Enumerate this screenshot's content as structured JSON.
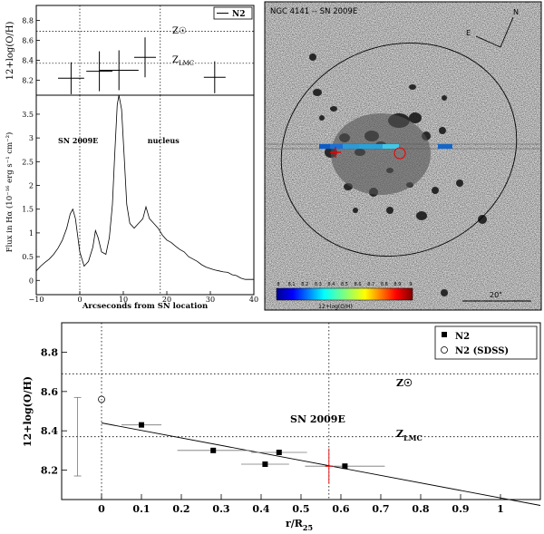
{
  "panels": {
    "top_left": {
      "ylabel": "12+log(O/H)",
      "legend": "N2",
      "ref_labels": [
        "Z☉",
        "Z_LMC"
      ],
      "ref_values": [
        8.69,
        8.37
      ],
      "ylim": [
        8.05,
        8.95
      ],
      "xlim": [
        -10,
        40
      ],
      "yticks": [
        "8.8",
        "8.6",
        "8.4",
        "8.2"
      ],
      "points": [
        {
          "x": -2,
          "y": 8.22,
          "xerr": 3,
          "yerr": 0.16
        },
        {
          "x": 4.5,
          "y": 8.29,
          "xerr": 3,
          "yerr": 0.2
        },
        {
          "x": 9,
          "y": 8.3,
          "xerr": 4.5,
          "yerr": 0.2
        },
        {
          "x": 15,
          "y": 8.43,
          "xerr": 2.5,
          "yerr": 0.2
        },
        {
          "x": 31,
          "y": 8.23,
          "xerr": 2.5,
          "yerr": 0.16
        }
      ]
    },
    "spectrum": {
      "ylabel": "Flux in Hα (10⁻¹⁶ erg s⁻¹ cm⁻²)",
      "xlabel": "Arcseconds from SN location",
      "ylim": [
        -0.3,
        3.9
      ],
      "xlim": [
        -10,
        40
      ],
      "yticks": [
        "3.5",
        "3",
        "2.5",
        "2",
        "1.5",
        "1",
        "0.5",
        "0"
      ],
      "xticks": [
        "−10",
        "0",
        "10",
        "20",
        "30",
        "40"
      ],
      "markers": [
        {
          "label": "SN 2009E",
          "x": 0
        },
        {
          "label": "nucleus",
          "x": 18.5
        }
      ],
      "profile": [
        [
          -10,
          0.2
        ],
        [
          -9,
          0.3
        ],
        [
          -8,
          0.38
        ],
        [
          -7,
          0.45
        ],
        [
          -6,
          0.55
        ],
        [
          -5,
          0.68
        ],
        [
          -4,
          0.85
        ],
        [
          -3,
          1.1
        ],
        [
          -2.2,
          1.4
        ],
        [
          -1.6,
          1.5
        ],
        [
          -1,
          1.3
        ],
        [
          0,
          0.6
        ],
        [
          1,
          0.3
        ],
        [
          2,
          0.4
        ],
        [
          3,
          0.7
        ],
        [
          3.6,
          1.05
        ],
        [
          4.2,
          0.9
        ],
        [
          5,
          0.6
        ],
        [
          6,
          0.55
        ],
        [
          6.8,
          0.9
        ],
        [
          7.5,
          1.6
        ],
        [
          8,
          2.6
        ],
        [
          8.6,
          3.7
        ],
        [
          9,
          3.9
        ],
        [
          9.6,
          3.6
        ],
        [
          10.2,
          2.6
        ],
        [
          10.8,
          1.6
        ],
        [
          11.5,
          1.2
        ],
        [
          12.5,
          1.1
        ],
        [
          13.5,
          1.2
        ],
        [
          14.5,
          1.3
        ],
        [
          15.2,
          1.55
        ],
        [
          16,
          1.3
        ],
        [
          17,
          1.2
        ],
        [
          18,
          1.1
        ],
        [
          19,
          0.95
        ],
        [
          20,
          0.85
        ],
        [
          21,
          0.8
        ],
        [
          22,
          0.72
        ],
        [
          23,
          0.65
        ],
        [
          24,
          0.6
        ],
        [
          25,
          0.5
        ],
        [
          26,
          0.45
        ],
        [
          27,
          0.4
        ],
        [
          28,
          0.33
        ],
        [
          29,
          0.28
        ],
        [
          30,
          0.25
        ],
        [
          31,
          0.22
        ],
        [
          32,
          0.2
        ],
        [
          33,
          0.18
        ],
        [
          34,
          0.17
        ],
        [
          35,
          0.12
        ],
        [
          36,
          0.1
        ],
        [
          37,
          0.05
        ],
        [
          38,
          0.02
        ],
        [
          39,
          0.02
        ],
        [
          40,
          0.02
        ]
      ]
    },
    "image": {
      "title": "NGC 4141 -- SN 2009E",
      "compass": [
        "N",
        "E"
      ],
      "scalebar": "20\"",
      "colorbar_label": "12+log(O/H)",
      "colorbar_ticks": [
        "8",
        "8.1",
        "8.2",
        "8.3",
        "8.4",
        "8.5",
        "8.6",
        "8.7",
        "8.8",
        "8.9",
        "9"
      ]
    }
  },
  "chart_data": {
    "type": "scatter",
    "xlabel": "r/R₂₅",
    "ylabel": "12+log(O/H)",
    "xlim": [
      -0.1,
      1.1
    ],
    "ylim": [
      8.05,
      8.95
    ],
    "xticks": [
      "0",
      "0.1",
      "0.2",
      "0.3",
      "0.4",
      "0.5",
      "0.6",
      "0.7",
      "0.8",
      "0.9",
      "1"
    ],
    "yticks": [
      "8.8",
      "8.6",
      "8.4",
      "8.2"
    ],
    "legend": [
      "N2",
      "N2 (SDSS)"
    ],
    "legend_position": "top-right",
    "annotations": [
      "SN 2009E",
      "Z☉",
      "Z_LMC"
    ],
    "ref_lines": {
      "Zsun": 8.69,
      "ZLMC": 8.37,
      "SN_r": 0.57
    },
    "series": [
      {
        "name": "N2",
        "points": [
          {
            "x": 0.1,
            "y": 8.43,
            "xerr": 0.05,
            "yerr": 0
          },
          {
            "x": 0.28,
            "y": 8.3,
            "xerr": 0.09,
            "yerr": 0
          },
          {
            "x": 0.41,
            "y": 8.23,
            "xerr": 0.06,
            "yerr": 0
          },
          {
            "x": 0.445,
            "y": 8.29,
            "xerr": 0.07,
            "yerr": 0
          },
          {
            "x": 0.61,
            "y": 8.22,
            "xerr": 0.1,
            "yerr": 0
          }
        ]
      },
      {
        "name": "N2 (SDSS)",
        "points": [
          {
            "x": 0,
            "y": 8.56
          }
        ]
      }
    ],
    "sn_point": {
      "x": 0.57,
      "y": 8.22,
      "yerr": 0.09
    },
    "sdss_errorbar": {
      "x": -0.06,
      "y_low": 8.17,
      "y_high": 8.57
    },
    "fit_line": [
      {
        "x": 0,
        "y": 8.44
      },
      {
        "x": 1.1,
        "y": 8.02
      }
    ]
  }
}
